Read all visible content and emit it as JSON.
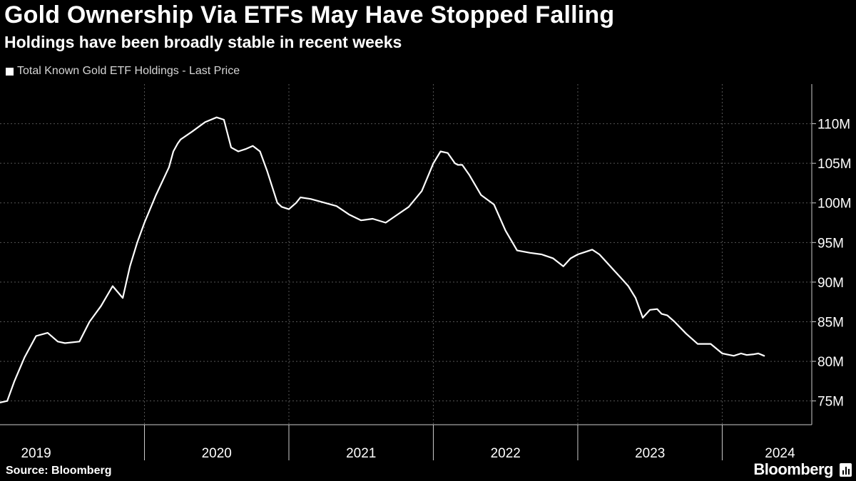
{
  "header": {
    "title": "Gold Ownership Via ETFs May Have Stopped Falling",
    "subtitle": "Holdings have been broadly stable in recent weeks"
  },
  "legend": {
    "label": "Total Known Gold ETF Holdings - Last Price"
  },
  "footer": {
    "source": "Source: Bloomberg",
    "brand": "Bloomberg"
  },
  "colors": {
    "background": "#000000",
    "line": "#ffffff",
    "grid": "#555555",
    "text": "#ffffff"
  },
  "chart_data": {
    "type": "line",
    "title": "Gold Ownership Via ETFs May Have Stopped Falling",
    "subtitle": "Holdings have been broadly stable in recent weeks",
    "series": [
      {
        "name": "Total Known Gold ETF Holdings - Last Price",
        "unit": "M",
        "x": [
          2019.0,
          2019.05,
          2019.1,
          2019.17,
          2019.25,
          2019.33,
          2019.4,
          2019.45,
          2019.55,
          2019.62,
          2019.7,
          2019.78,
          2019.85,
          2019.9,
          2019.95,
          2020.0,
          2020.08,
          2020.17,
          2020.2,
          2020.23,
          2020.25,
          2020.33,
          2020.42,
          2020.5,
          2020.55,
          2020.6,
          2020.65,
          2020.7,
          2020.75,
          2020.8,
          2020.85,
          2020.92,
          2020.95,
          2021.0,
          2021.05,
          2021.08,
          2021.15,
          2021.25,
          2021.33,
          2021.42,
          2021.5,
          2021.58,
          2021.67,
          2021.75,
          2021.83,
          2021.92,
          2022.0,
          2022.05,
          2022.1,
          2022.15,
          2022.17,
          2022.2,
          2022.25,
          2022.33,
          2022.42,
          2022.5,
          2022.58,
          2022.67,
          2022.75,
          2022.83,
          2022.9,
          2022.95,
          2023.0,
          2023.05,
          2023.1,
          2023.15,
          2023.2,
          2023.25,
          2023.3,
          2023.35,
          2023.4,
          2023.45,
          2023.5,
          2023.55,
          2023.58,
          2023.62,
          2023.67,
          2023.75,
          2023.83,
          2023.92,
          2024.0,
          2024.08,
          2024.13,
          2024.17,
          2024.22,
          2024.25,
          2024.29
        ],
        "values": [
          74.8,
          75.0,
          77.5,
          80.5,
          83.2,
          83.6,
          82.5,
          82.3,
          82.5,
          85.0,
          87.0,
          89.5,
          88.0,
          92.0,
          95.0,
          97.5,
          101.0,
          104.5,
          106.5,
          107.5,
          108.0,
          109.0,
          110.2,
          110.8,
          110.5,
          107.0,
          106.5,
          106.8,
          107.2,
          106.5,
          104.0,
          100.0,
          99.5,
          99.2,
          100.0,
          100.7,
          100.5,
          100.0,
          99.6,
          98.5,
          97.8,
          98.0,
          97.5,
          98.5,
          99.5,
          101.5,
          105.0,
          106.5,
          106.3,
          105.0,
          104.8,
          104.8,
          103.5,
          101.0,
          99.8,
          96.5,
          94.0,
          93.7,
          93.5,
          93.0,
          92.0,
          93.0,
          93.5,
          93.8,
          94.1,
          93.5,
          92.5,
          91.5,
          90.5,
          89.5,
          88.0,
          85.5,
          86.5,
          86.6,
          86.0,
          85.8,
          85.0,
          83.5,
          82.2,
          82.2,
          81.0,
          80.7,
          81.0,
          80.8,
          80.9,
          81.0,
          80.7
        ]
      }
    ],
    "xlabel": "",
    "ylabel": "",
    "xlim": [
      2019.0,
      2024.62
    ],
    "ylim": [
      72,
      115
    ],
    "yticks": [
      75,
      80,
      85,
      90,
      95,
      100,
      105,
      110
    ],
    "ytick_labels": [
      "75M",
      "80M",
      "85M",
      "90M",
      "95M",
      "100M",
      "105M",
      "110M"
    ],
    "x_boundaries": [
      2020,
      2021,
      2022,
      2023,
      2024
    ],
    "x_labels": [
      {
        "label": "2019",
        "x": 2019.25
      },
      {
        "label": "2020",
        "x": 2020.5
      },
      {
        "label": "2021",
        "x": 2021.5
      },
      {
        "label": "2022",
        "x": 2022.5
      },
      {
        "label": "2023",
        "x": 2023.5
      },
      {
        "label": "2024",
        "x": 2024.4
      }
    ],
    "grid": true,
    "legend_position": "top-left"
  }
}
